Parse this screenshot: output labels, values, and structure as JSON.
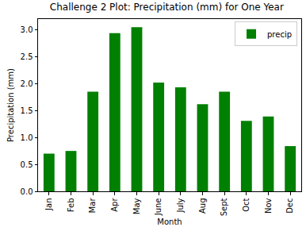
{
  "chart_data": {
    "type": "bar",
    "title": "Challenge 2 Plot: Precipitation (mm) for One Year",
    "x_label": "Month",
    "y_label": "Precipitation (mm)",
    "categories": [
      "Jan",
      "Feb",
      "Mar",
      "Apr",
      "May",
      "June",
      "July",
      "Aug",
      "Sept",
      "Oct",
      "Nov",
      "Dec"
    ],
    "series": [
      {
        "name": "precip",
        "color": "#008000",
        "values": [
          0.7,
          0.75,
          1.85,
          2.94,
          3.05,
          2.02,
          1.93,
          1.62,
          1.85,
          1.31,
          1.39,
          0.84
        ]
      }
    ],
    "ylim": [
      0,
      3.2
    ],
    "yticks": [
      {
        "value": 0,
        "label": "0.0"
      },
      0.5,
      {
        "value": 1,
        "label": "1.0"
      },
      1.5,
      {
        "value": 2,
        "label": "2.0"
      },
      2.5,
      {
        "value": 3,
        "label": "3.0"
      }
    ],
    "grid": false,
    "legend": "upper right"
  }
}
